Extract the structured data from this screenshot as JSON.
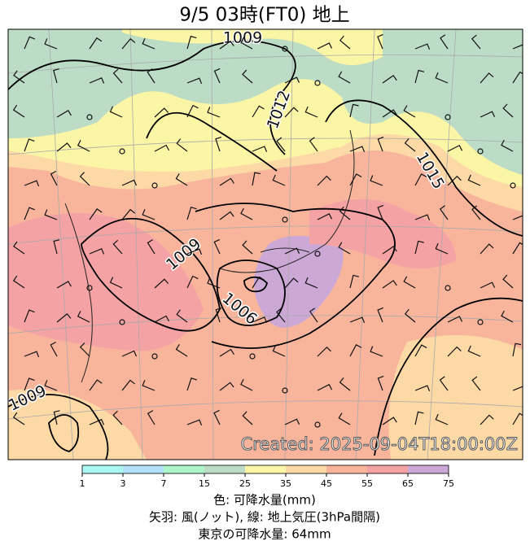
{
  "header": {
    "title": "9/5  03時(FT0)     地上"
  },
  "map": {
    "contour_labels": [
      "1009",
      "1012",
      "1015",
      "1009",
      "1006",
      "1009"
    ],
    "watermark": "Created: 2025-09-04T18:00:00Z"
  },
  "colorbar": {
    "ticks": [
      1,
      3,
      7,
      15,
      25,
      35,
      45,
      55,
      65,
      75
    ],
    "colors": [
      "#a9f6f2",
      "#b3e1f5",
      "#acf5c8",
      "#bcdcc6",
      "#fbf5a6",
      "#fdd9a6",
      "#f8b59c",
      "#f5a2a4",
      "#cba8d6"
    ]
  },
  "caption": {
    "lines": [
      "色: 可降水量(mm)",
      "矢羽: 風(ノット),  線: 地上気圧(3hPa間隔)",
      "東京の可降水量: 64mm"
    ]
  }
}
